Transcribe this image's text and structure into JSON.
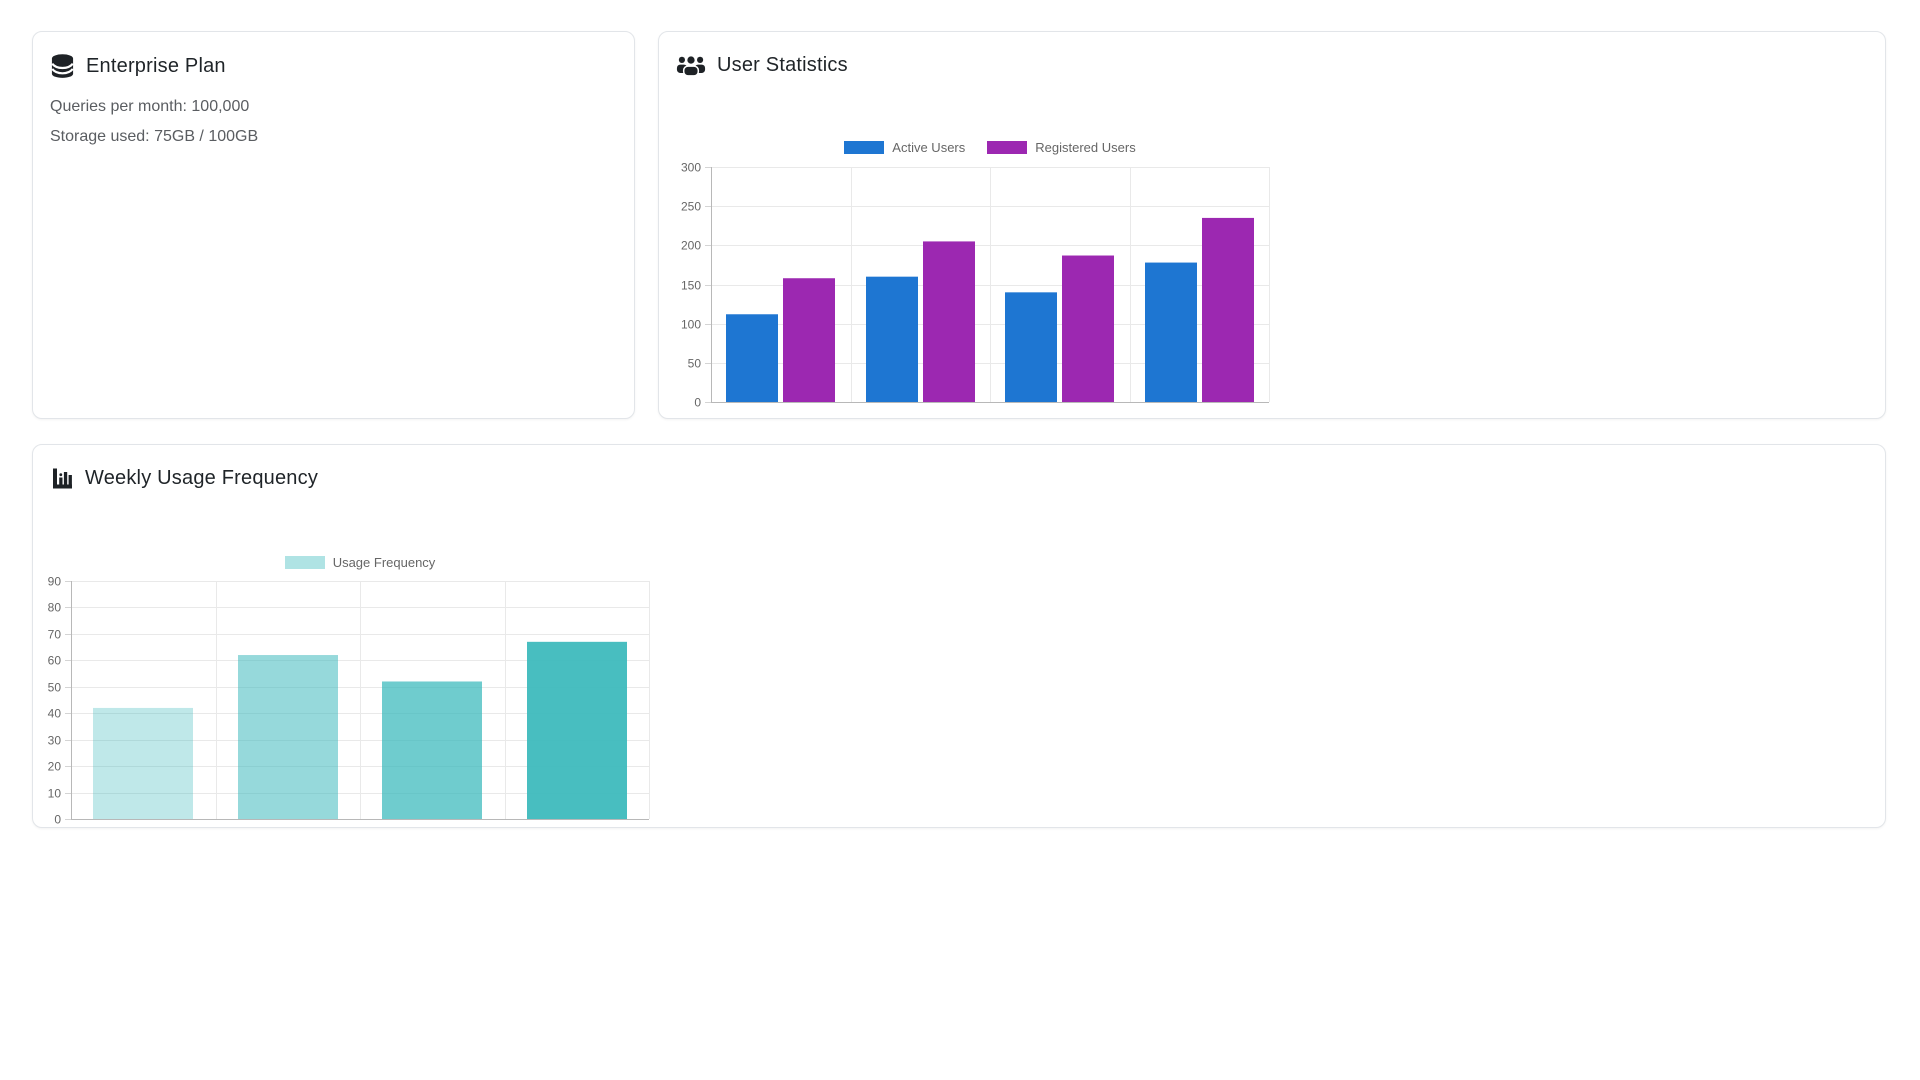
{
  "theme": {
    "card_border": "#e2e5e9",
    "title_color": "#1f2428",
    "body_text_color": "#5a5d61",
    "axis_text_color": "#666666",
    "gridline_color": "#e9e9e9",
    "axis_line_color": "#b8b8b8"
  },
  "enterprise_plan": {
    "icon": "database-icon",
    "title": "Enterprise Plan",
    "stats": [
      "Queries per month: 100,000",
      "Storage used: 75GB / 100GB"
    ]
  },
  "user_statistics": {
    "icon": "users-icon",
    "title": "User Statistics",
    "chart_data": {
      "type": "bar",
      "categories": [
        "",
        "",
        "",
        ""
      ],
      "series": [
        {
          "name": "Active Users",
          "color": "#1e76d2",
          "values": [
            112,
            160,
            140,
            178
          ]
        },
        {
          "name": "Registered Users",
          "color": "#9c28b1",
          "values": [
            158,
            205,
            187,
            235
          ]
        }
      ],
      "ylim": [
        0,
        300
      ],
      "ytick": 50,
      "legend_position": "top",
      "grid": true
    }
  },
  "weekly_usage": {
    "icon": "chart-column-icon",
    "title": "Weekly Usage Frequency",
    "chart_data": {
      "type": "bar",
      "categories": [
        "",
        "",
        "",
        ""
      ],
      "series": [
        {
          "name": "Usage Frequency",
          "color": "rgba(56,184,187,0.4)",
          "bar_colors": [
            "rgba(56,184,187,0.32)",
            "rgba(56,184,187,0.53)",
            "rgba(56,184,187,0.72)",
            "rgba(56,184,187,0.92)"
          ],
          "values": [
            42,
            62,
            52,
            67
          ]
        }
      ],
      "ylim": [
        0,
        90
      ],
      "ytick": 10,
      "legend_position": "top",
      "grid": true
    }
  }
}
